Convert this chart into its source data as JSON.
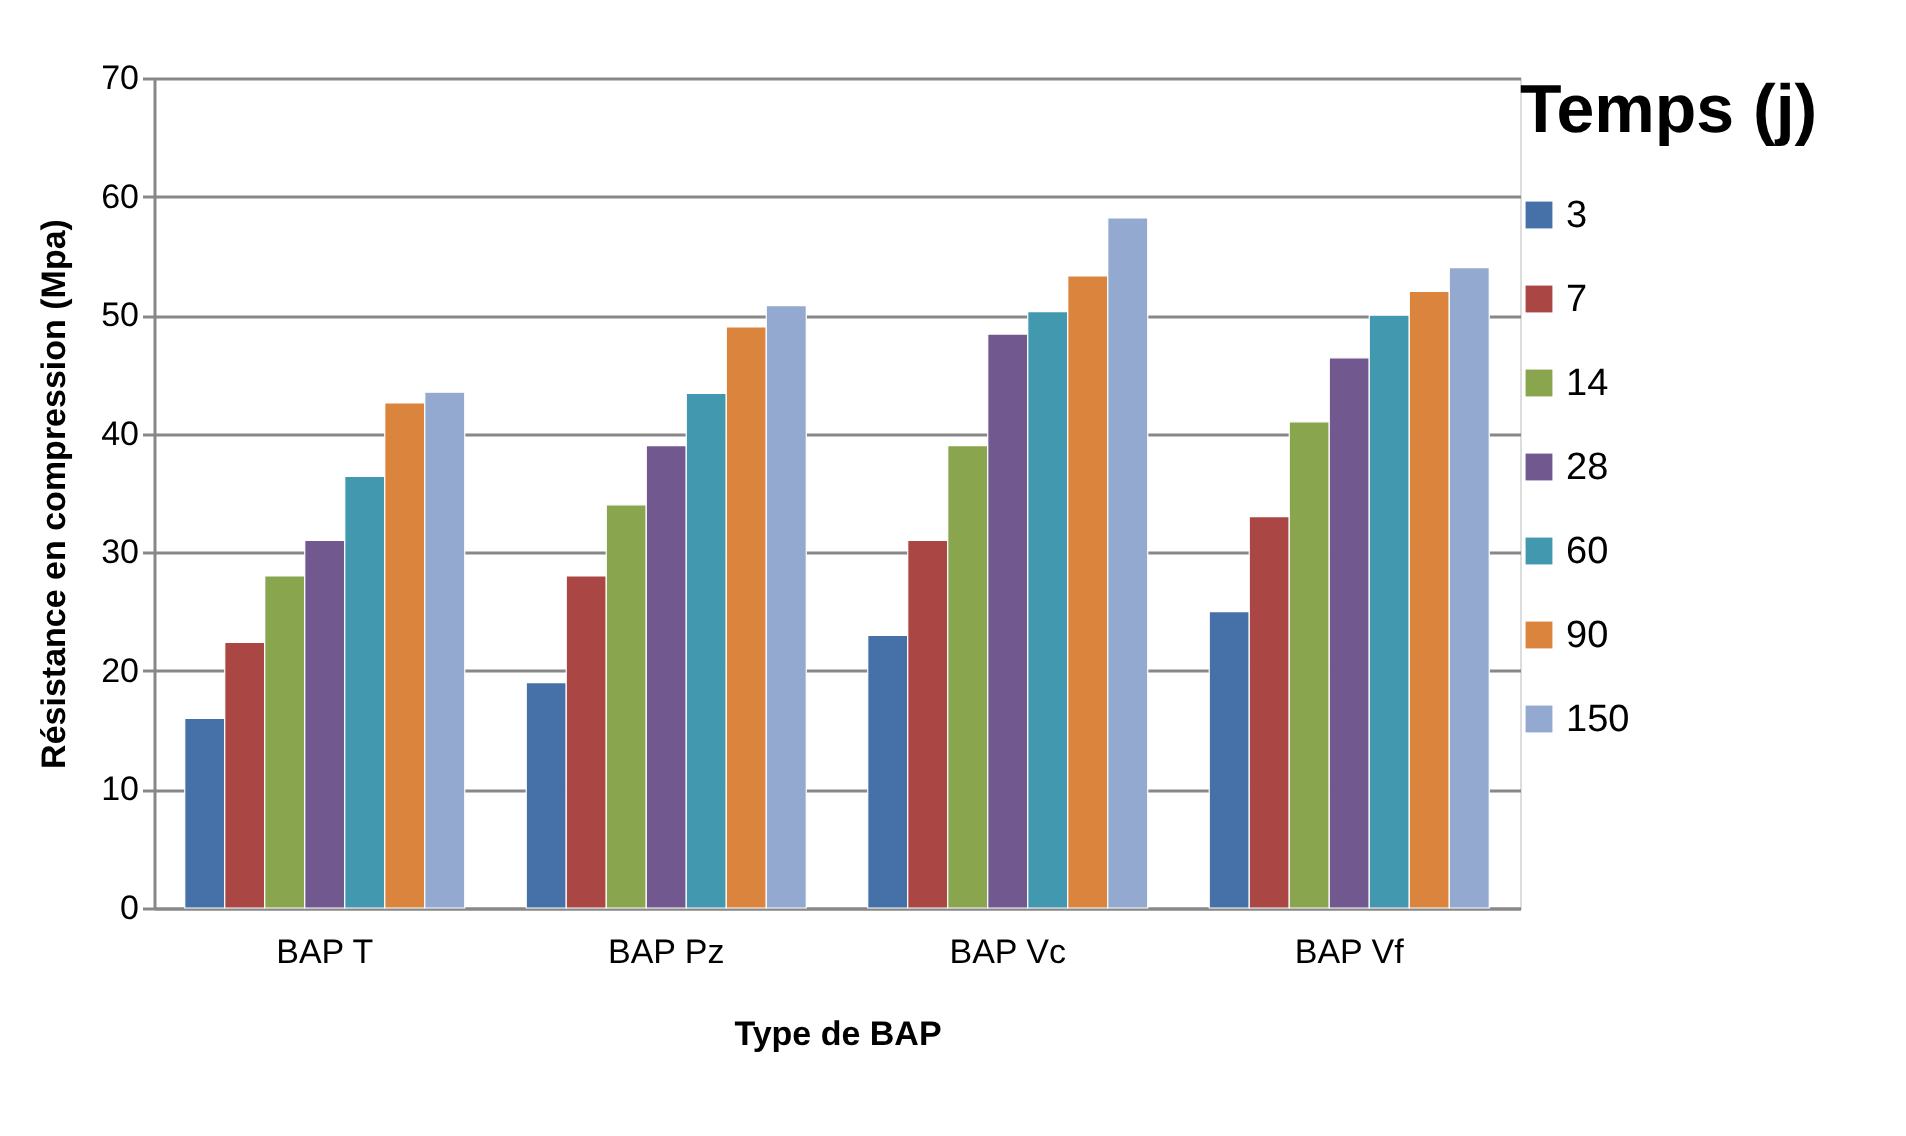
{
  "chart_data": {
    "type": "bar",
    "xlabel": "Type de BAP",
    "ylabel": "Résistance en compression (Mpa)",
    "legend_title": "Temps (j)",
    "categories": [
      "BAP T",
      "BAP Pz",
      "BAP Vc",
      "BAP Vf"
    ],
    "series": [
      {
        "name": "3",
        "color": "#4571a8",
        "values": [
          16,
          19,
          23,
          25
        ]
      },
      {
        "name": "7",
        "color": "#aa4644",
        "values": [
          22.4,
          28,
          31,
          33
        ]
      },
      {
        "name": "14",
        "color": "#89a54e",
        "values": [
          28,
          34,
          39,
          41
        ]
      },
      {
        "name": "28",
        "color": "#71588f",
        "values": [
          31,
          39,
          48.4,
          46.4
        ]
      },
      {
        "name": "60",
        "color": "#4298af",
        "values": [
          36.4,
          43.4,
          50.3,
          50
        ]
      },
      {
        "name": "90",
        "color": "#db843d",
        "values": [
          42.6,
          49,
          53.3,
          52
        ]
      },
      {
        "name": "150",
        "color": "#93a9cf",
        "values": [
          43.5,
          50.8,
          58.2,
          54
        ]
      }
    ],
    "ylim": [
      0,
      70
    ],
    "yticks": [
      0,
      10,
      20,
      30,
      40,
      50,
      60,
      70
    ],
    "grid": "y",
    "legend": "right"
  }
}
